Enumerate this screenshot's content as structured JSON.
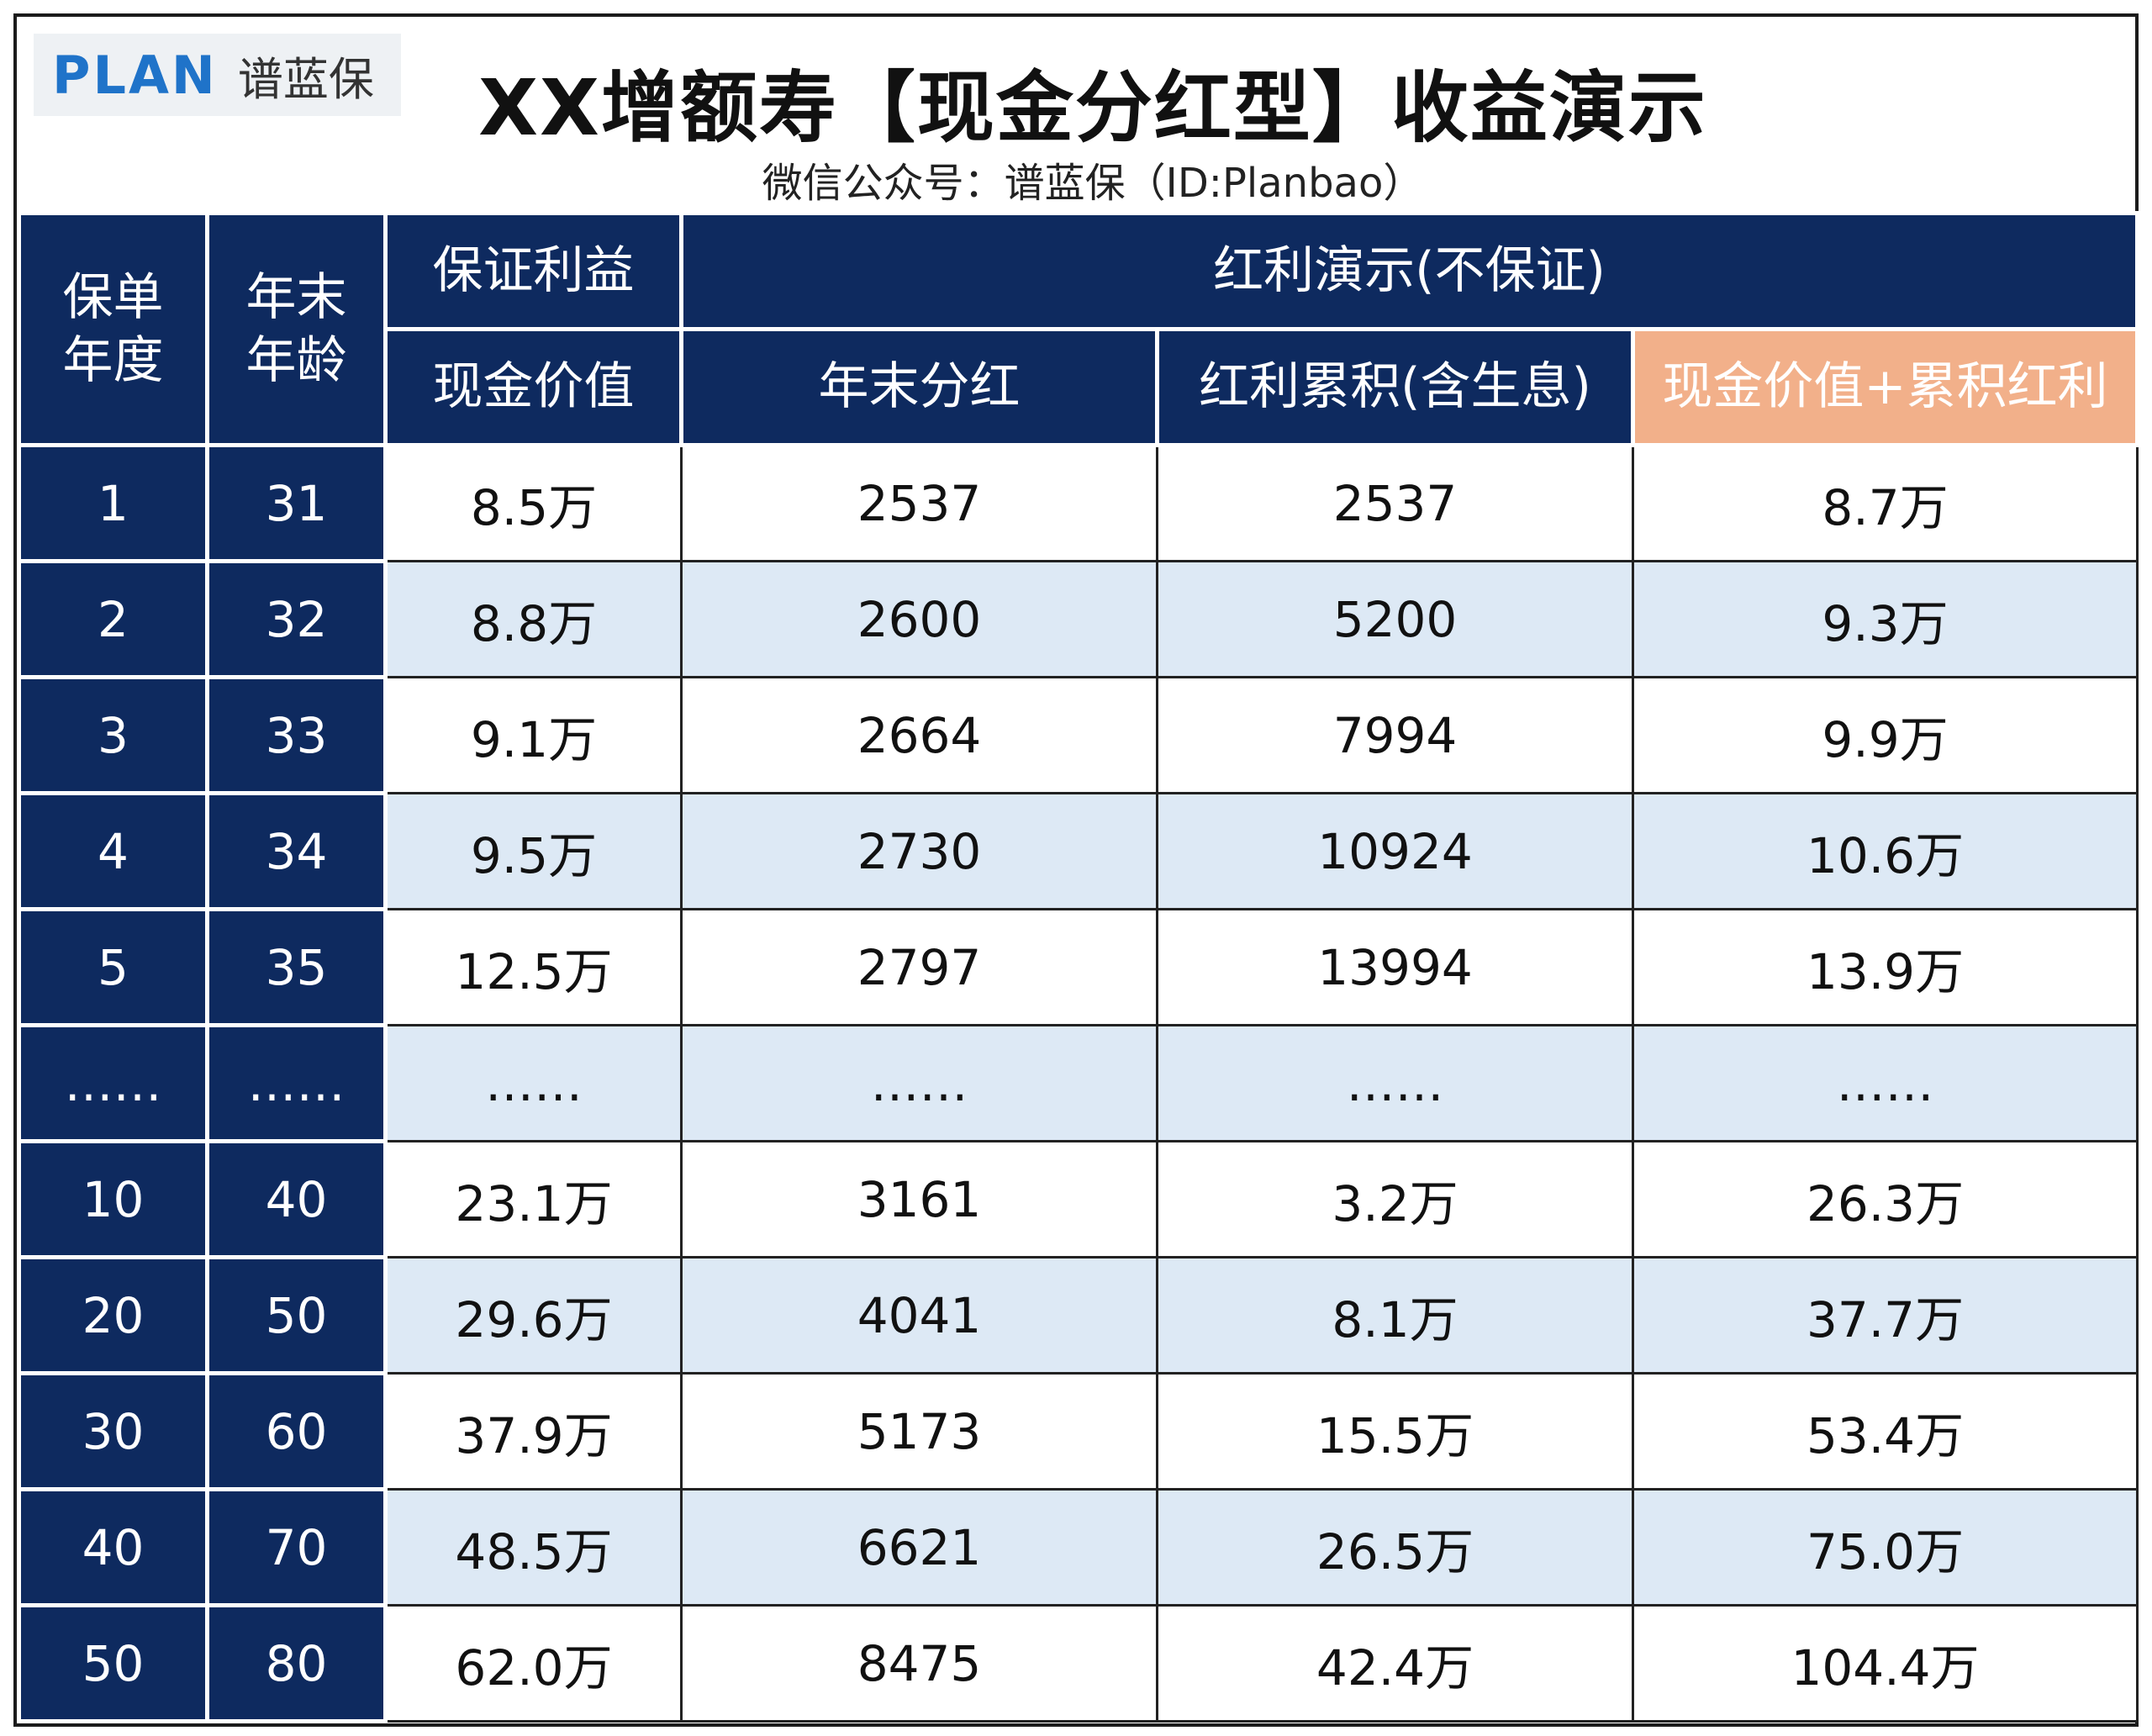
{
  "header": {
    "logo_plan": "PLAN",
    "logo_cn": "谱蓝保",
    "title": "XX增额寿【现金分红型】收益演示",
    "subtitle": "微信公众号：谱蓝保（ID:Planbao）"
  },
  "colors": {
    "header_navy": "#0e2a5f",
    "highlight_orange": "#f2b08a",
    "row_alt": "#dde9f5",
    "logo_blue": "#1f73c9"
  },
  "table": {
    "headers": {
      "policy_year": "保单年度",
      "age": "年末年龄",
      "guaranteed": "保证利益",
      "bonus": "红利演示(不保证)",
      "cash_value": "现金价值",
      "year_end_bonus": "年末分红",
      "accumulated_bonus": "红利累积(含生息)",
      "total": "现金价值+累积红利"
    },
    "rows": [
      {
        "year": "1",
        "age": "31",
        "cash": "8.5万",
        "bonus": "2537",
        "accum": "2537",
        "total": "8.7万"
      },
      {
        "year": "2",
        "age": "32",
        "cash": "8.8万",
        "bonus": "2600",
        "accum": "5200",
        "total": "9.3万"
      },
      {
        "year": "3",
        "age": "33",
        "cash": "9.1万",
        "bonus": "2664",
        "accum": "7994",
        "total": "9.9万"
      },
      {
        "year": "4",
        "age": "34",
        "cash": "9.5万",
        "bonus": "2730",
        "accum": "10924",
        "total": "10.6万"
      },
      {
        "year": "5",
        "age": "35",
        "cash": "12.5万",
        "bonus": "2797",
        "accum": "13994",
        "total": "13.9万"
      },
      {
        "year": "……",
        "age": "……",
        "cash": "……",
        "bonus": "……",
        "accum": "……",
        "total": "……"
      },
      {
        "year": "10",
        "age": "40",
        "cash": "23.1万",
        "bonus": "3161",
        "accum": "3.2万",
        "total": "26.3万"
      },
      {
        "year": "20",
        "age": "50",
        "cash": "29.6万",
        "bonus": "4041",
        "accum": "8.1万",
        "total": "37.7万"
      },
      {
        "year": "30",
        "age": "60",
        "cash": "37.9万",
        "bonus": "5173",
        "accum": "15.5万",
        "total": "53.4万"
      },
      {
        "year": "40",
        "age": "70",
        "cash": "48.5万",
        "bonus": "6621",
        "accum": "26.5万",
        "total": "75.0万"
      },
      {
        "year": "50",
        "age": "80",
        "cash": "62.0万",
        "bonus": "8475",
        "accum": "42.4万",
        "total": "104.4万"
      }
    ]
  }
}
